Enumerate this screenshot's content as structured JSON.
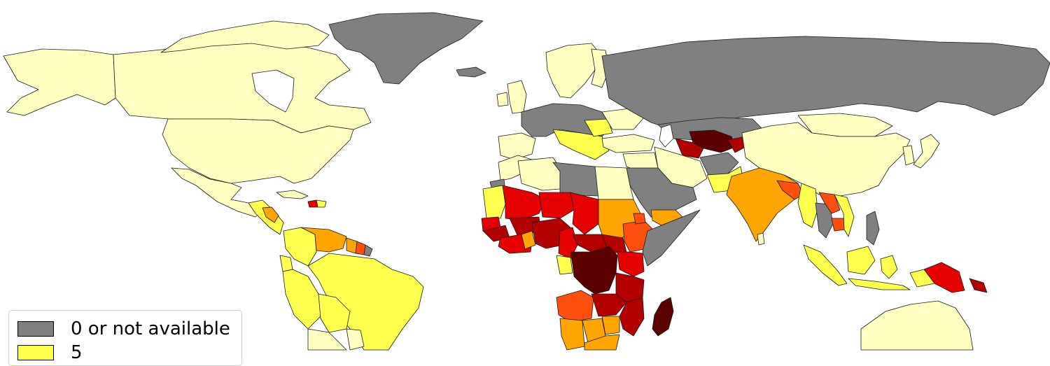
{
  "palette": {
    "not_available": "#808080",
    "level_1": "#ffffc0",
    "level_2": "#ffff4d",
    "level_3": "#ffa500",
    "level_4": "#ff4f0f",
    "level_5": "#e60000",
    "level_6": "#b30000",
    "level_7": "#5c0000"
  },
  "legend": {
    "items": [
      {
        "label": "0 or not available",
        "color": "#808080"
      },
      {
        "label": "5",
        "color": "#ffff4d"
      }
    ]
  }
}
